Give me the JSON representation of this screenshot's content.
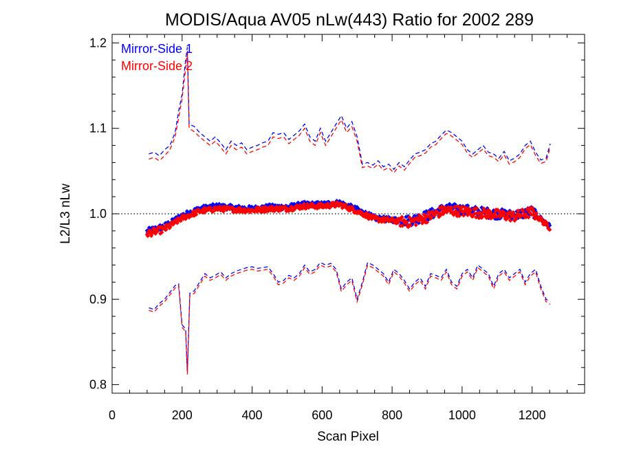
{
  "chart_data": {
    "type": "line",
    "title": "MODIS/Aqua AV05 nLw(443) Ratio for 2002 289",
    "xlabel": "Scan Pixel",
    "ylabel": "L2/L3 nLw",
    "xlim": [
      0,
      1350
    ],
    "ylim": [
      0.79,
      1.21
    ],
    "xticks": [
      0,
      200,
      400,
      600,
      800,
      1000,
      1200
    ],
    "xtick_labels": [
      "0",
      "200",
      "400",
      "600",
      "800",
      "1000",
      "1200"
    ],
    "yticks": [
      0.8,
      0.9,
      1.0,
      1.1,
      1.2
    ],
    "ytick_labels": [
      "0.8",
      "0.9",
      "1.0",
      "1.1",
      "1.2"
    ],
    "reference_line": 1.0,
    "grid": false,
    "legend_position": "top-left",
    "legend": [
      {
        "label": "Mirror-Side 1",
        "color": "#0000ff"
      },
      {
        "label": "Mirror-Side 2",
        "color": "#ff0000"
      }
    ],
    "series": [
      {
        "name": "Mirror-Side 1",
        "color": "#0000ff",
        "mean": {
          "x": [
            100,
            150,
            200,
            250,
            300,
            350,
            400,
            450,
            500,
            550,
            600,
            650,
            700,
            750,
            800,
            850,
            900,
            950,
            1000,
            1050,
            1100,
            1150,
            1200,
            1250
          ],
          "y": [
            0.979,
            0.985,
            0.998,
            1.006,
            1.009,
            1.007,
            1.006,
            1.008,
            1.008,
            1.011,
            1.011,
            1.013,
            1.005,
            0.995,
            0.993,
            0.992,
            0.998,
            1.006,
            1.005,
            1.002,
            1.0,
            0.998,
            1.003,
            0.985
          ]
        },
        "upper": {
          "x": [
            105,
            120,
            135,
            150,
            165,
            180,
            190,
            200,
            210,
            215,
            220,
            235,
            250,
            265,
            280,
            295,
            310,
            325,
            340,
            355,
            370,
            385,
            400,
            415,
            430,
            445,
            460,
            475,
            490,
            505,
            520,
            535,
            550,
            565,
            580,
            595,
            610,
            625,
            640,
            655,
            670,
            685,
            700,
            715,
            730,
            745,
            760,
            775,
            790,
            805,
            820,
            835,
            850,
            865,
            880,
            895,
            910,
            925,
            940,
            955,
            970,
            985,
            1000,
            1015,
            1030,
            1045,
            1060,
            1075,
            1090,
            1105,
            1120,
            1135,
            1150,
            1165,
            1180,
            1195,
            1210,
            1225,
            1240,
            1252
          ],
          "y": [
            1.07,
            1.072,
            1.068,
            1.075,
            1.08,
            1.095,
            1.12,
            1.14,
            1.18,
            1.195,
            1.105,
            1.102,
            1.095,
            1.09,
            1.085,
            1.09,
            1.083,
            1.075,
            1.085,
            1.08,
            1.083,
            1.075,
            1.078,
            1.08,
            1.083,
            1.085,
            1.095,
            1.093,
            1.095,
            1.087,
            1.092,
            1.097,
            1.105,
            1.09,
            1.085,
            1.1,
            1.085,
            1.095,
            1.105,
            1.115,
            1.1,
            1.108,
            1.09,
            1.058,
            1.06,
            1.057,
            1.062,
            1.055,
            1.058,
            1.052,
            1.06,
            1.055,
            1.063,
            1.07,
            1.072,
            1.075,
            1.082,
            1.085,
            1.092,
            1.098,
            1.095,
            1.09,
            1.085,
            1.075,
            1.07,
            1.075,
            1.08,
            1.072,
            1.07,
            1.065,
            1.073,
            1.062,
            1.065,
            1.07,
            1.08,
            1.085,
            1.072,
            1.063,
            1.065,
            1.082
          ]
        },
        "lower": {
          "x": [
            105,
            120,
            135,
            150,
            165,
            180,
            190,
            200,
            210,
            215,
            222,
            235,
            250,
            265,
            280,
            295,
            310,
            325,
            340,
            355,
            370,
            385,
            400,
            415,
            430,
            445,
            460,
            475,
            490,
            505,
            520,
            535,
            550,
            565,
            580,
            595,
            610,
            625,
            640,
            655,
            670,
            685,
            700,
            715,
            730,
            745,
            760,
            775,
            790,
            805,
            820,
            835,
            850,
            865,
            880,
            895,
            910,
            925,
            940,
            955,
            970,
            985,
            1000,
            1015,
            1030,
            1045,
            1060,
            1075,
            1090,
            1105,
            1120,
            1135,
            1150,
            1165,
            1180,
            1195,
            1210,
            1225,
            1240,
            1252
          ],
          "y": [
            0.89,
            0.888,
            0.895,
            0.9,
            0.908,
            0.916,
            0.918,
            0.87,
            0.865,
            0.815,
            0.907,
            0.91,
            0.92,
            0.93,
            0.925,
            0.928,
            0.932,
            0.925,
            0.93,
            0.933,
            0.935,
            0.937,
            0.938,
            0.936,
            0.937,
            0.938,
            0.93,
            0.92,
            0.922,
            0.928,
            0.925,
            0.93,
            0.94,
            0.932,
            0.935,
            0.943,
            0.94,
            0.942,
            0.935,
            0.912,
            0.92,
            0.925,
            0.9,
            0.92,
            0.943,
            0.94,
            0.935,
            0.93,
            0.92,
            0.935,
            0.93,
            0.922,
            0.912,
            0.92,
            0.925,
            0.915,
            0.93,
            0.928,
            0.925,
            0.935,
            0.92,
            0.915,
            0.93,
            0.935,
            0.925,
            0.94,
            0.935,
            0.93,
            0.915,
            0.93,
            0.935,
            0.925,
            0.93,
            0.935,
            0.92,
            0.93,
            0.935,
            0.915,
            0.9,
            0.897
          ]
        }
      },
      {
        "name": "Mirror-Side 2",
        "color": "#ff0000",
        "mean": {
          "x": [
            100,
            150,
            200,
            250,
            300,
            350,
            400,
            450,
            500,
            550,
            600,
            650,
            700,
            750,
            800,
            850,
            900,
            950,
            1000,
            1050,
            1100,
            1150,
            1200,
            1250
          ],
          "y": [
            0.977,
            0.982,
            0.995,
            1.003,
            1.006,
            1.005,
            1.004,
            1.006,
            1.006,
            1.009,
            1.009,
            1.011,
            1.003,
            0.994,
            0.992,
            0.99,
            0.996,
            1.004,
            1.003,
            1.001,
            0.999,
            0.997,
            1.002,
            0.984
          ]
        },
        "upper": {
          "x": [
            105,
            120,
            135,
            150,
            165,
            180,
            190,
            200,
            210,
            215,
            220,
            235,
            250,
            265,
            280,
            295,
            310,
            325,
            340,
            355,
            370,
            385,
            400,
            415,
            430,
            445,
            460,
            475,
            490,
            505,
            520,
            535,
            550,
            565,
            580,
            595,
            610,
            625,
            640,
            655,
            670,
            685,
            700,
            715,
            730,
            745,
            760,
            775,
            790,
            805,
            820,
            835,
            850,
            865,
            880,
            895,
            910,
            925,
            940,
            955,
            970,
            985,
            1000,
            1015,
            1030,
            1045,
            1060,
            1075,
            1090,
            1105,
            1120,
            1135,
            1150,
            1165,
            1180,
            1195,
            1210,
            1225,
            1240,
            1252
          ],
          "y": [
            1.064,
            1.066,
            1.062,
            1.068,
            1.075,
            1.09,
            1.112,
            1.135,
            1.17,
            1.19,
            1.1,
            1.096,
            1.09,
            1.085,
            1.08,
            1.085,
            1.078,
            1.07,
            1.08,
            1.075,
            1.078,
            1.07,
            1.073,
            1.075,
            1.078,
            1.08,
            1.09,
            1.088,
            1.09,
            1.082,
            1.087,
            1.092,
            1.1,
            1.085,
            1.08,
            1.095,
            1.08,
            1.09,
            1.1,
            1.11,
            1.095,
            1.102,
            1.085,
            1.054,
            1.056,
            1.053,
            1.058,
            1.051,
            1.054,
            1.048,
            1.056,
            1.051,
            1.059,
            1.066,
            1.068,
            1.071,
            1.078,
            1.081,
            1.088,
            1.094,
            1.091,
            1.086,
            1.081,
            1.071,
            1.066,
            1.071,
            1.076,
            1.068,
            1.066,
            1.061,
            1.069,
            1.058,
            1.061,
            1.066,
            1.076,
            1.081,
            1.068,
            1.059,
            1.061,
            1.078
          ]
        },
        "lower": {
          "x": [
            105,
            120,
            135,
            150,
            165,
            180,
            190,
            200,
            210,
            215,
            222,
            235,
            250,
            265,
            280,
            295,
            310,
            325,
            340,
            355,
            370,
            385,
            400,
            415,
            430,
            445,
            460,
            475,
            490,
            505,
            520,
            535,
            550,
            565,
            580,
            595,
            610,
            625,
            640,
            655,
            670,
            685,
            700,
            715,
            730,
            745,
            760,
            775,
            790,
            805,
            820,
            835,
            850,
            865,
            880,
            895,
            910,
            925,
            940,
            955,
            970,
            985,
            1000,
            1015,
            1030,
            1045,
            1060,
            1075,
            1090,
            1105,
            1120,
            1135,
            1150,
            1165,
            1180,
            1195,
            1210,
            1225,
            1240,
            1252
          ],
          "y": [
            0.887,
            0.885,
            0.892,
            0.897,
            0.905,
            0.913,
            0.915,
            0.867,
            0.862,
            0.812,
            0.904,
            0.907,
            0.917,
            0.927,
            0.922,
            0.925,
            0.929,
            0.922,
            0.927,
            0.93,
            0.932,
            0.934,
            0.935,
            0.933,
            0.934,
            0.935,
            0.927,
            0.917,
            0.919,
            0.925,
            0.922,
            0.927,
            0.937,
            0.929,
            0.932,
            0.94,
            0.937,
            0.939,
            0.932,
            0.909,
            0.917,
            0.922,
            0.897,
            0.917,
            0.94,
            0.937,
            0.932,
            0.927,
            0.917,
            0.932,
            0.927,
            0.919,
            0.909,
            0.917,
            0.922,
            0.912,
            0.927,
            0.925,
            0.922,
            0.932,
            0.917,
            0.912,
            0.927,
            0.932,
            0.922,
            0.937,
            0.932,
            0.927,
            0.912,
            0.927,
            0.932,
            0.922,
            0.927,
            0.932,
            0.917,
            0.927,
            0.932,
            0.912,
            0.897,
            0.894
          ]
        }
      }
    ]
  }
}
